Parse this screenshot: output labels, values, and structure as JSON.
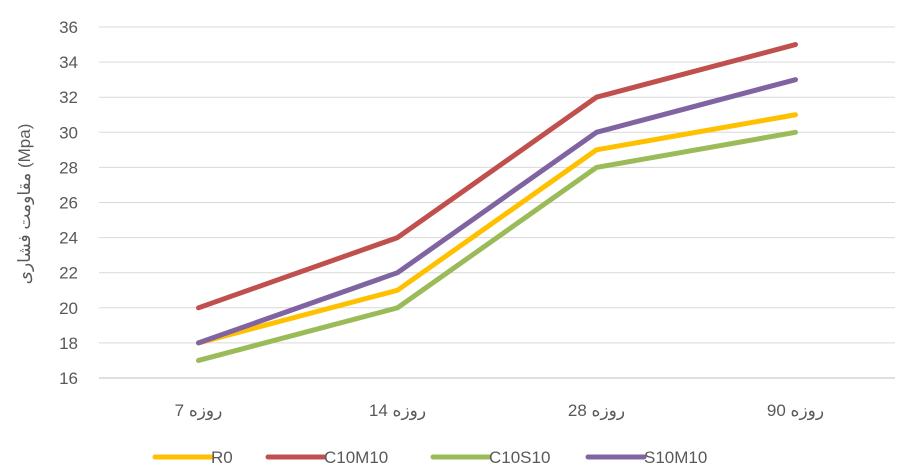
{
  "chart_data": {
    "type": "line",
    "categories": [
      "7 روزه",
      "14 روزه",
      "28 روزه",
      "90 روزه"
    ],
    "series": [
      {
        "name": "R0",
        "values": [
          18,
          21,
          29,
          31
        ],
        "color": "#FFC000"
      },
      {
        "name": "C10M10",
        "values": [
          20,
          24,
          32,
          35
        ],
        "color": "#C0504D"
      },
      {
        "name": "C10S10",
        "values": [
          17,
          20,
          28,
          30
        ],
        "color": "#9BBB59"
      },
      {
        "name": "S10M10",
        "values": [
          18,
          22,
          30,
          33
        ],
        "color": "#8064A2"
      }
    ],
    "ylabel": "مقاومت فشاری (Mpa)",
    "ylim": [
      16,
      36
    ],
    "yticks": [
      16,
      18,
      20,
      22,
      24,
      26,
      28,
      30,
      32,
      34,
      36
    ],
    "grid": true,
    "legend_position": "bottom"
  }
}
